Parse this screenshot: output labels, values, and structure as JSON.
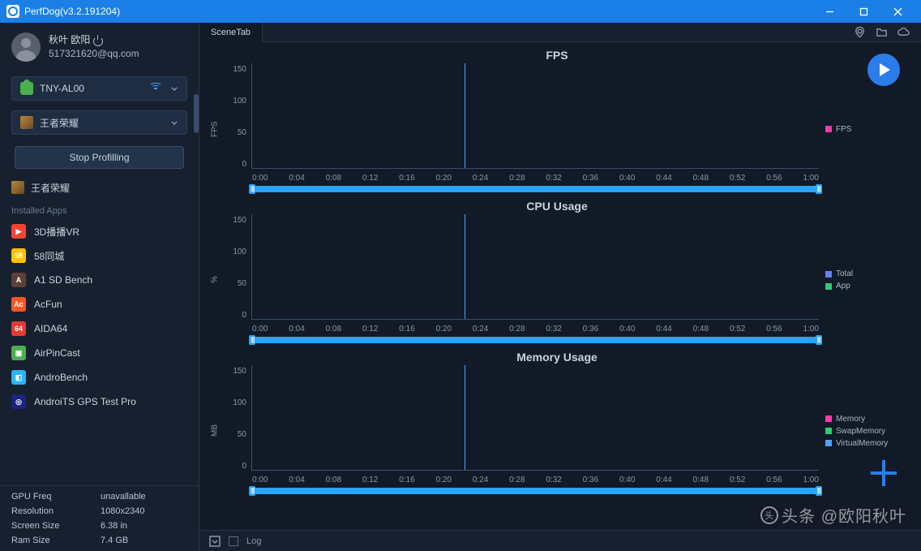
{
  "window": {
    "title": "PerfDog(v3.2.191204)"
  },
  "user": {
    "name": "秋叶 欧阳",
    "email": "517321620@qq.com"
  },
  "device_combo": {
    "label": "TNY-AL00"
  },
  "app_combo": {
    "label": "王者荣耀"
  },
  "stop_button": "Stop Profilling",
  "running_app": {
    "label": "王者荣耀"
  },
  "installed_label": "Installed Apps",
  "apps": [
    {
      "label": "3D播播VR",
      "bg": "#f44336",
      "txt": "▶"
    },
    {
      "label": "58同城",
      "bg": "#ffc107",
      "txt": "58"
    },
    {
      "label": "A1 SD Bench",
      "bg": "#5d4037",
      "txt": "A"
    },
    {
      "label": "AcFun",
      "bg": "#ff5722",
      "txt": "Ac"
    },
    {
      "label": "AIDA64",
      "bg": "#e53935",
      "txt": "64"
    },
    {
      "label": "AirPinCast",
      "bg": "#4caf50",
      "txt": "▣"
    },
    {
      "label": "AndroBench",
      "bg": "#29b6f6",
      "txt": "◧"
    },
    {
      "label": "AndroiTS GPS Test Pro",
      "bg": "#1a237e",
      "txt": "◎"
    }
  ],
  "device_info": [
    {
      "k": "GPU Freq",
      "v": "unavallable"
    },
    {
      "k": "Resolution",
      "v": "1080x2340"
    },
    {
      "k": "Screen Size",
      "v": "6.38 in"
    },
    {
      "k": "Ram Size",
      "v": "7.4 GB"
    }
  ],
  "tab": {
    "label": "SceneTab"
  },
  "x_ticks": [
    "0:00",
    "0:04",
    "0:08",
    "0:12",
    "0:16",
    "0:20",
    "0:24",
    "0:28",
    "0:32",
    "0:36",
    "0:40",
    "0:44",
    "0:48",
    "0:52",
    "0:56",
    "1:00"
  ],
  "vline_pct": 37.5,
  "charts": [
    {
      "title": "FPS",
      "ylabel": "FPS",
      "yticks": [
        "150",
        "100",
        "50",
        "0"
      ],
      "legend": [
        {
          "label": "FPS",
          "color": "#ff3ba7"
        }
      ]
    },
    {
      "title": "CPU Usage",
      "ylabel": "%",
      "yticks": [
        "150",
        "100",
        "50",
        "0"
      ],
      "legend": [
        {
          "label": "Total",
          "color": "#6b7cff"
        },
        {
          "label": "App",
          "color": "#2ecc71"
        }
      ]
    },
    {
      "title": "Memory Usage",
      "ylabel": "MB",
      "yticks": [
        "150",
        "100",
        "50",
        "0"
      ],
      "legend": [
        {
          "label": "Memory",
          "color": "#ff3ba7"
        },
        {
          "label": "SwapMemory",
          "color": "#2ecc71"
        },
        {
          "label": "VirtualMemory",
          "color": "#4aa3ff"
        }
      ]
    }
  ],
  "footer": {
    "log": "Log"
  },
  "watermark": "头条 @欧阳秋叶"
}
